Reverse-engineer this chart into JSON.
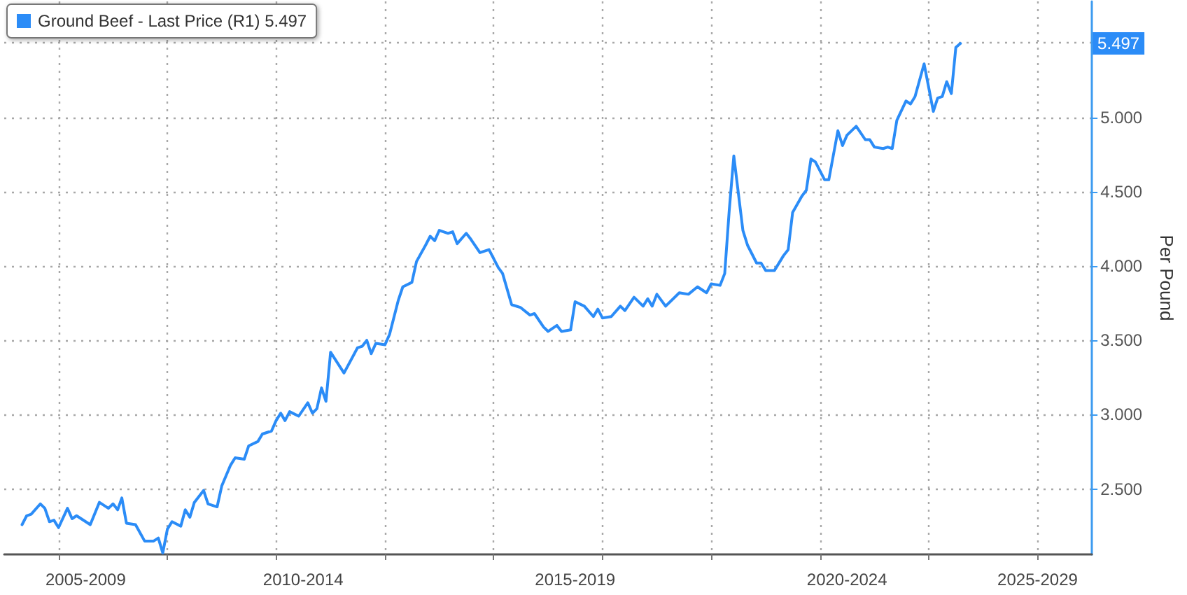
{
  "chart_data": {
    "type": "line",
    "ylabel": "Per Pound",
    "x": [
      "2007-05",
      "2007-06",
      "2007-07",
      "2007-09",
      "2007-10",
      "2007-11",
      "2007-12",
      "2008-01",
      "2008-03",
      "2008-04",
      "2008-05",
      "2008-08",
      "2008-10",
      "2008-12",
      "2009-01",
      "2009-02",
      "2009-03",
      "2009-04",
      "2009-06",
      "2009-08",
      "2009-10",
      "2009-11",
      "2009-12",
      "2010-01",
      "2010-02",
      "2010-04",
      "2010-05",
      "2010-06",
      "2010-07",
      "2010-09",
      "2010-10",
      "2010-12",
      "2011-01",
      "2011-03",
      "2011-04",
      "2011-06",
      "2011-07",
      "2011-09",
      "2011-10",
      "2011-12",
      "2012-01",
      "2012-02",
      "2012-03",
      "2012-04",
      "2012-06",
      "2012-08",
      "2012-09",
      "2012-10",
      "2012-11",
      "2012-12",
      "2013-01",
      "2013-04",
      "2013-07",
      "2013-08",
      "2013-09",
      "2013-10",
      "2013-11",
      "2014-01",
      "2014-02",
      "2014-04",
      "2014-05",
      "2014-07",
      "2014-08",
      "2014-10",
      "2014-11",
      "2014-12",
      "2015-01",
      "2015-03",
      "2015-04",
      "2015-05",
      "2015-07",
      "2015-08",
      "2015-10",
      "2015-12",
      "2016-02",
      "2016-03",
      "2016-05",
      "2016-07",
      "2016-09",
      "2016-10",
      "2016-12",
      "2017-01",
      "2017-03",
      "2017-04",
      "2017-06",
      "2017-07",
      "2017-09",
      "2017-11",
      "2017-12",
      "2018-01",
      "2018-03",
      "2018-05",
      "2018-06",
      "2018-08",
      "2018-10",
      "2018-11",
      "2018-12",
      "2019-01",
      "2019-03",
      "2019-06",
      "2019-08",
      "2019-10",
      "2019-12",
      "2020-01",
      "2020-03",
      "2020-04",
      "2020-05",
      "2020-06",
      "2020-08",
      "2020-09",
      "2020-11",
      "2020-12",
      "2021-01",
      "2021-03",
      "2021-05",
      "2021-06",
      "2021-07",
      "2021-09",
      "2021-10",
      "2021-11",
      "2021-12",
      "2022-02",
      "2022-03",
      "2022-05",
      "2022-06",
      "2022-07",
      "2022-09",
      "2022-11",
      "2022-12",
      "2023-01",
      "2023-03",
      "2023-04",
      "2023-05",
      "2023-06",
      "2023-08",
      "2023-09",
      "2023-10",
      "2023-12",
      "2024-02",
      "2024-03",
      "2024-04",
      "2024-05",
      "2024-06",
      "2024-07",
      "2024-08"
    ],
    "series": [
      {
        "name": "Ground Beef - Last Price (R1) 5.497",
        "color": "#2b8cf7",
        "values": [
          2.26,
          2.32,
          2.33,
          2.4,
          2.37,
          2.28,
          2.29,
          2.24,
          2.37,
          2.3,
          2.32,
          2.26,
          2.41,
          2.37,
          2.4,
          2.36,
          2.44,
          2.27,
          2.26,
          2.15,
          2.15,
          2.17,
          2.07,
          2.23,
          2.28,
          2.25,
          2.36,
          2.31,
          2.41,
          2.49,
          2.4,
          2.38,
          2.52,
          2.66,
          2.71,
          2.7,
          2.79,
          2.82,
          2.87,
          2.89,
          2.96,
          3.01,
          2.96,
          3.02,
          2.99,
          3.08,
          3.01,
          3.04,
          3.18,
          3.09,
          3.42,
          3.28,
          3.45,
          3.46,
          3.5,
          3.41,
          3.48,
          3.47,
          3.54,
          3.77,
          3.86,
          3.89,
          4.03,
          4.14,
          4.2,
          4.17,
          4.24,
          4.22,
          4.23,
          4.15,
          4.22,
          4.18,
          4.09,
          4.11,
          3.99,
          3.95,
          3.74,
          3.72,
          3.67,
          3.68,
          3.59,
          3.56,
          3.6,
          3.56,
          3.57,
          3.76,
          3.73,
          3.66,
          3.71,
          3.65,
          3.66,
          3.73,
          3.7,
          3.79,
          3.73,
          3.78,
          3.73,
          3.81,
          3.73,
          3.82,
          3.81,
          3.86,
          3.82,
          3.88,
          3.87,
          3.95,
          4.37,
          4.74,
          4.24,
          4.14,
          4.02,
          4.02,
          3.97,
          3.97,
          4.07,
          4.11,
          4.36,
          4.47,
          4.51,
          4.72,
          4.7,
          4.58,
          4.58,
          4.91,
          4.81,
          4.88,
          4.94,
          4.85,
          4.85,
          4.8,
          4.79,
          4.8,
          4.79,
          4.98,
          5.11,
          5.09,
          5.14,
          5.36,
          5.04,
          5.13,
          5.14,
          5.24,
          5.16,
          5.47,
          5.497
        ]
      }
    ],
    "annotations": [
      {
        "text": "5.497",
        "y": 5.497
      }
    ],
    "xlim": [
      "2007-01",
      "2027-01"
    ],
    "xticks": [
      {
        "value": "2008-01",
        "label": null
      },
      {
        "value": "2010-01",
        "label": null
      },
      {
        "value": "2012-01",
        "label": null
      },
      {
        "value": "2014-01",
        "label": null
      },
      {
        "value": "2016-01",
        "label": null
      },
      {
        "value": "2018-01",
        "label": null
      },
      {
        "value": "2020-01",
        "label": null
      },
      {
        "value": "2022-01",
        "label": null
      },
      {
        "value": "2024-01",
        "label": null
      },
      {
        "value": "2026-01",
        "label": null
      },
      {
        "value": "2008-07",
        "label": "2005-2009"
      },
      {
        "value": "2012-07",
        "label": "2010-2014"
      },
      {
        "value": "2017-07",
        "label": "2015-2019"
      },
      {
        "value": "2022-07",
        "label": "2020-2024"
      },
      {
        "value": "2026-01",
        "label": "2025-2029"
      }
    ],
    "ylim": [
      2.06,
      5.78
    ],
    "yticks": [
      {
        "value": 2.5,
        "label": "2.500"
      },
      {
        "value": 3.0,
        "label": "3.000"
      },
      {
        "value": 3.5,
        "label": "3.500"
      },
      {
        "value": 4.0,
        "label": "4.000"
      },
      {
        "value": 4.5,
        "label": "4.500"
      },
      {
        "value": 5.0,
        "label": "5.000"
      },
      {
        "value": 5.5,
        "label": null
      }
    ],
    "grid": true,
    "legend": "top left",
    "marker": "none",
    "line_style": "solid"
  }
}
